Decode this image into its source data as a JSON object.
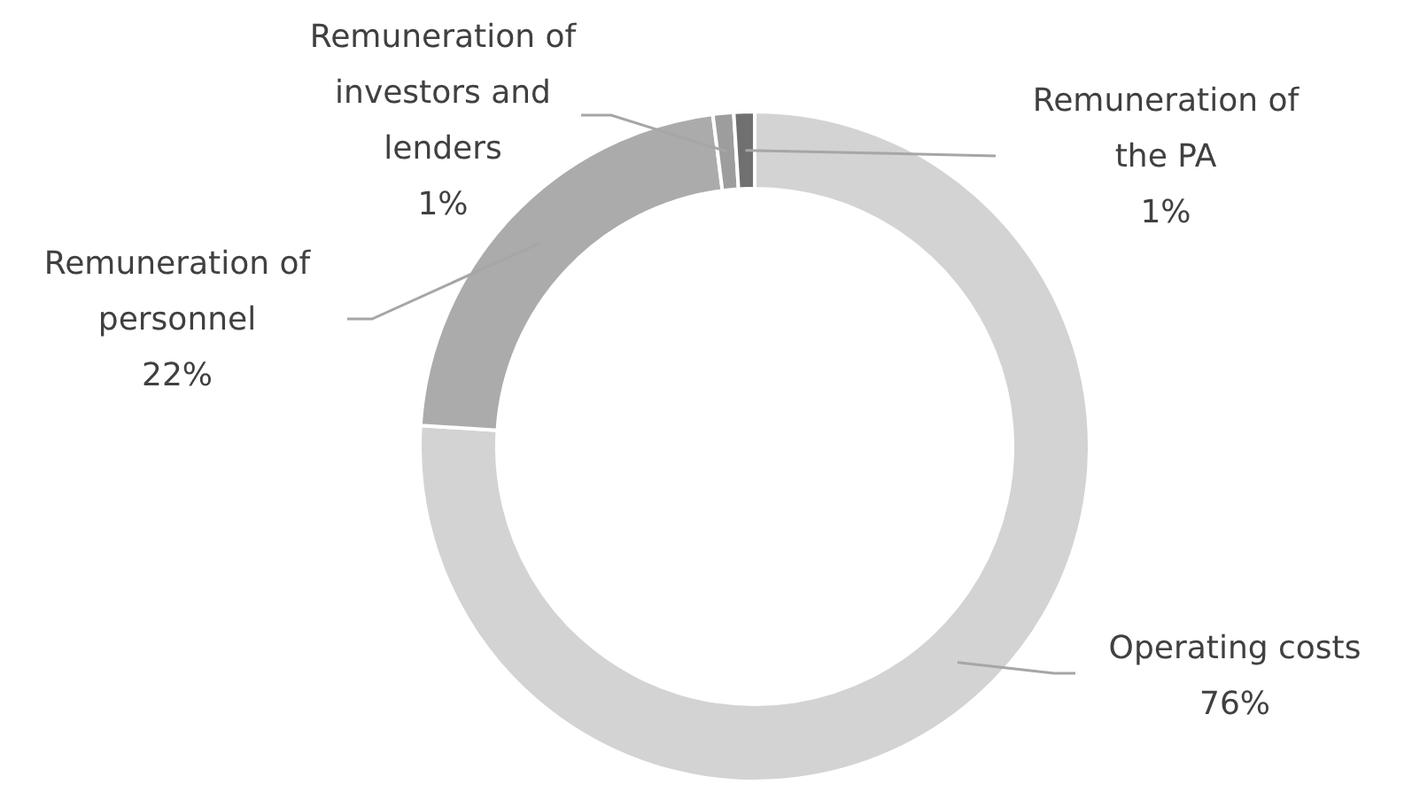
{
  "chart_data": {
    "type": "donut",
    "categories": [
      "Operating costs",
      "Remuneration of personnel",
      "Remuneration of investors and lenders",
      "Remuneration of the PA"
    ],
    "values": [
      76,
      22,
      1,
      1
    ],
    "colors": [
      "#d3d3d3",
      "#ababab",
      "#9d9d9d",
      "#707070"
    ],
    "value_labels": [
      "76%",
      "22%",
      "1%",
      "1%"
    ],
    "legend": false
  }
}
